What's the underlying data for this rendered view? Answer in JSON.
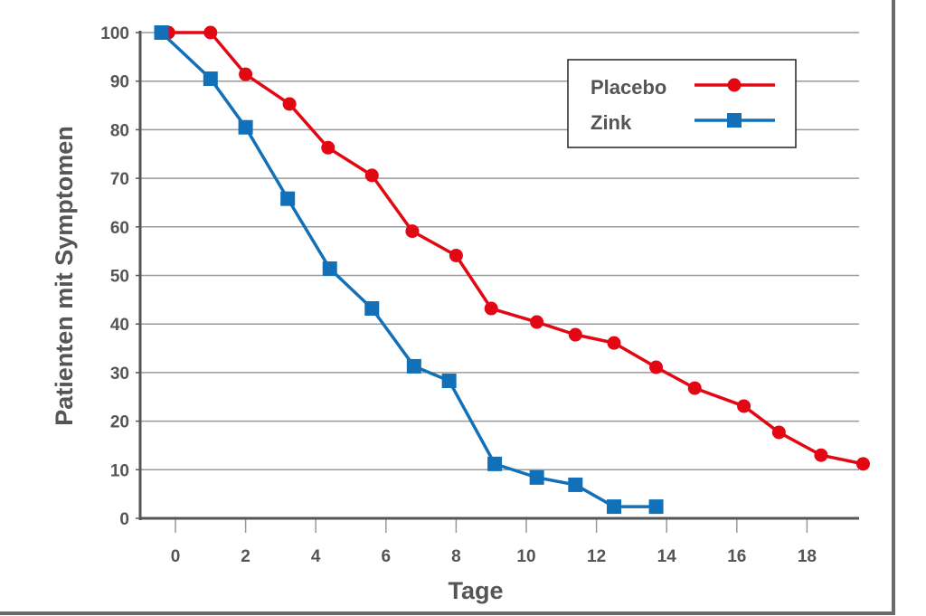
{
  "chart_data": {
    "type": "line",
    "title": "",
    "xlabel": "Tage",
    "ylabel": "Patienten mit Symptomen",
    "xlim": [
      -1,
      19.6
    ],
    "ylim": [
      0,
      100
    ],
    "xticks": [
      0,
      2,
      4,
      6,
      8,
      10,
      12,
      14,
      16,
      18
    ],
    "yticks": [
      0,
      10,
      20,
      30,
      40,
      50,
      60,
      70,
      80,
      90,
      100
    ],
    "grid": "horizontal",
    "legend_position": "top-right",
    "series": [
      {
        "name": "Placebo",
        "color": "#e30613",
        "marker": "circle",
        "x": [
          -0.2,
          1.0,
          2.0,
          3.25,
          4.35,
          5.6,
          6.75,
          8.0,
          9.0,
          10.3,
          11.4,
          12.5,
          13.7,
          14.8,
          16.2,
          17.2,
          18.4,
          19.6
        ],
        "y": [
          100,
          100,
          91.4,
          85.3,
          76.3,
          70.6,
          59.1,
          54.1,
          43.2,
          40.4,
          37.8,
          36.1,
          31.1,
          26.8,
          23.1,
          17.7,
          13.0,
          11.2
        ]
      },
      {
        "name": "Zink",
        "color": "#1170b8",
        "marker": "square",
        "x": [
          -0.4,
          1.0,
          2.0,
          3.2,
          4.4,
          5.6,
          6.8,
          7.8,
          9.1,
          10.3,
          11.4,
          12.5,
          13.7
        ],
        "y": [
          100,
          90.5,
          80.5,
          65.8,
          51.4,
          43.2,
          31.3,
          28.3,
          11.2,
          8.4,
          6.9,
          2.4,
          2.4
        ]
      }
    ]
  }
}
